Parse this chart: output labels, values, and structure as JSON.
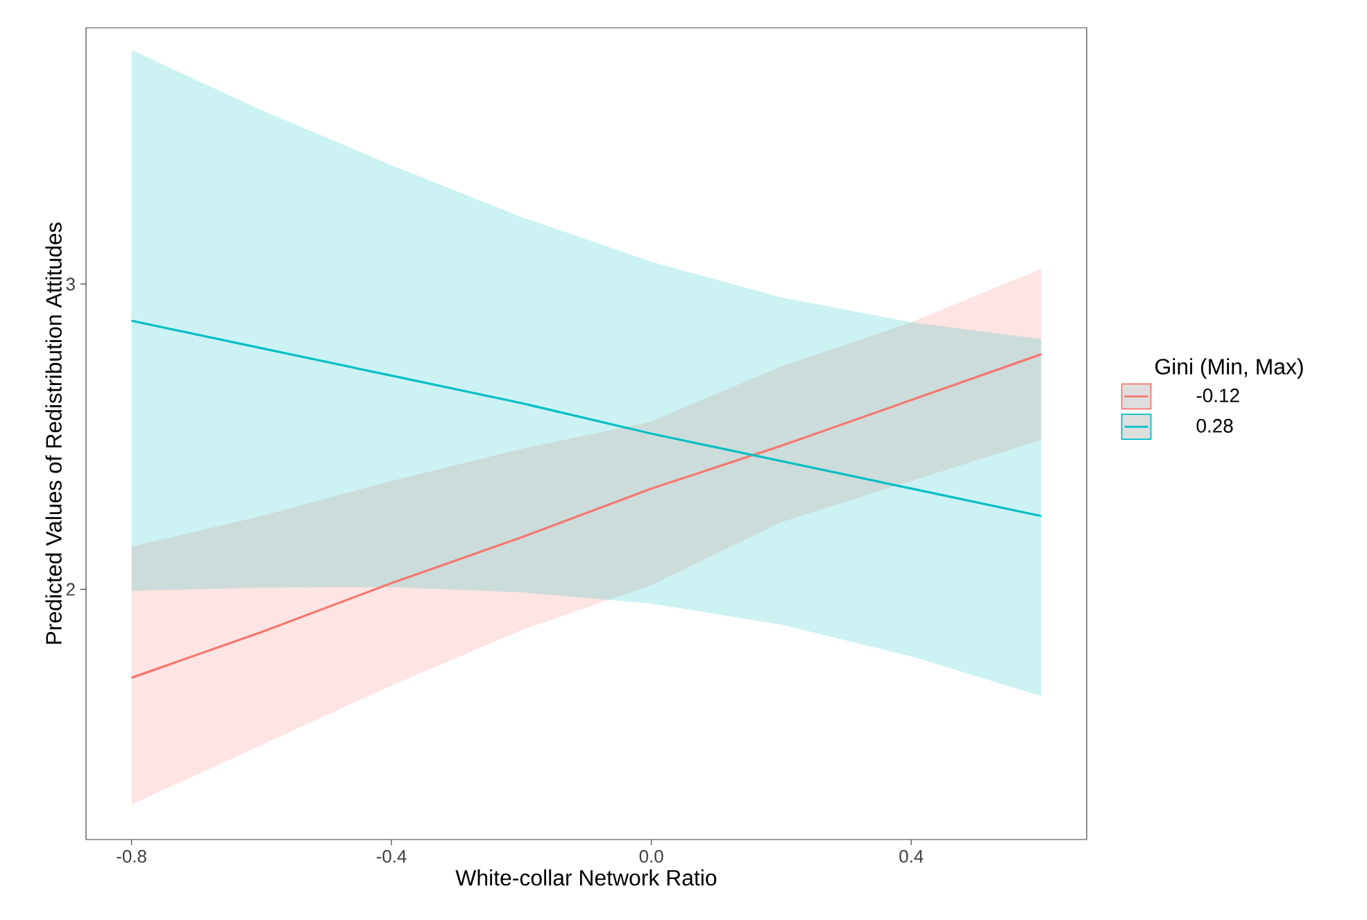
{
  "chart_data": {
    "type": "line",
    "xlabel": "White-collar Network Ratio",
    "ylabel": "Predicted Values of Redistribution Attitudes",
    "legend_title": "Gini (Min, Max)",
    "legend": "right",
    "xlim": [
      -0.87,
      0.67
    ],
    "ylim": [
      1.18,
      3.84
    ],
    "xticks": [
      -0.8,
      -0.4,
      {
        "value": 0,
        "label": "0.0"
      },
      0.4
    ],
    "yticks": [
      2,
      3
    ],
    "series": [
      {
        "name": "-0.12",
        "color": "#f8766d",
        "x": [
          -0.8,
          -0.6,
          -0.4,
          -0.2,
          0,
          0.2,
          0.4,
          0.6
        ],
        "values": [
          1.71,
          1.86,
          2.02,
          2.17,
          2.33,
          2.47,
          2.62,
          2.77
        ],
        "lower": [
          1.295,
          1.49,
          1.685,
          1.866,
          2.014,
          2.22,
          2.355,
          2.49
        ],
        "upper": [
          2.14,
          2.24,
          2.355,
          2.46,
          2.55,
          2.73,
          2.875,
          3.05
        ]
      },
      {
        "name": "0.28",
        "color": "#00bfc4",
        "x": [
          -0.8,
          -0.6,
          -0.4,
          -0.2,
          0,
          0.2,
          0.4,
          0.6
        ],
        "values": [
          2.88,
          2.79,
          2.7,
          2.61,
          2.51,
          2.42,
          2.33,
          2.24
        ],
        "lower": [
          1.995,
          2.005,
          2.007,
          1.99,
          1.953,
          1.884,
          1.78,
          1.65
        ],
        "upper": [
          3.767,
          3.57,
          3.39,
          3.22,
          3.073,
          2.956,
          2.875,
          2.82
        ]
      }
    ]
  }
}
